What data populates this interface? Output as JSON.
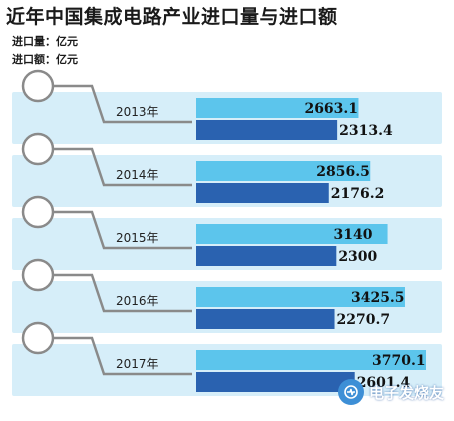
{
  "header": {
    "title": "近年中国集成电路产业进口量与进口额",
    "unit_volume": "进口量：亿元",
    "unit_amount": "进口额：亿元"
  },
  "colors": {
    "volume_bar": "#5cc5ec",
    "amount_bar": "#2a62b0",
    "panel": "#d6eef9",
    "connector": "#8a8a8a"
  },
  "watermark": {
    "text": "电子发烧友"
  },
  "chart_data": {
    "type": "bar",
    "orientation": "horizontal",
    "categories": [
      "2013年",
      "2014年",
      "2015年",
      "2016年",
      "2017年"
    ],
    "series": [
      {
        "name": "进口量",
        "values": [
          "2663.1",
          "2856.5",
          "3140",
          "3425.5",
          "3770.1"
        ]
      },
      {
        "name": "进口额",
        "values": [
          "2313.4",
          "2176.2",
          "2300",
          "2270.7",
          "2601.4"
        ]
      }
    ],
    "title": "近年中国集成电路产业进口量与进口额",
    "grid": false,
    "legend": "none"
  }
}
